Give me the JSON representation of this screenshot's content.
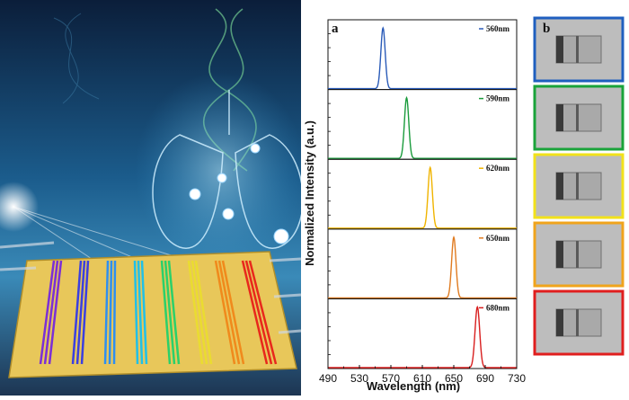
{
  "chart_data": {
    "type": "line",
    "panel_label": "a",
    "xlabel": "Wavelength (nm)",
    "ylabel": "Normalized Intensity (a.u.)",
    "xlim": [
      490,
      730
    ],
    "x_ticks": [
      490,
      530,
      570,
      610,
      650,
      690,
      730
    ],
    "ylim": [
      0,
      1.15
    ],
    "grid": false,
    "legend": "inside each subplot, top-right",
    "series": [
      {
        "name": "560nm",
        "color": "#2a5bb8",
        "peak": 560,
        "fwhm": 6.5
      },
      {
        "name": "590nm",
        "color": "#1a9b3c",
        "peak": 590,
        "fwhm": 6.5
      },
      {
        "name": "620nm",
        "color": "#f0b400",
        "peak": 620,
        "fwhm": 6.5
      },
      {
        "name": "650nm",
        "color": "#e07b20",
        "peak": 650,
        "fwhm": 6.5
      },
      {
        "name": "680nm",
        "color": "#d81e1e",
        "peak": 680,
        "fwhm": 7
      }
    ]
  },
  "micrographs": {
    "panel_label": "b",
    "frames": [
      {
        "border_color": "#1f5fbf"
      },
      {
        "border_color": "#1aa33a"
      },
      {
        "border_color": "#f2e21a"
      },
      {
        "border_color": "#f0a41c"
      },
      {
        "border_color": "#e01e1e"
      }
    ]
  },
  "illustration": {
    "stripe_colors": [
      "#7b2fd6",
      "#3b3fe0",
      "#2e8ff0",
      "#20c0e8",
      "#2bd06a",
      "#eadc30",
      "#f08a1c",
      "#e8281c"
    ]
  }
}
